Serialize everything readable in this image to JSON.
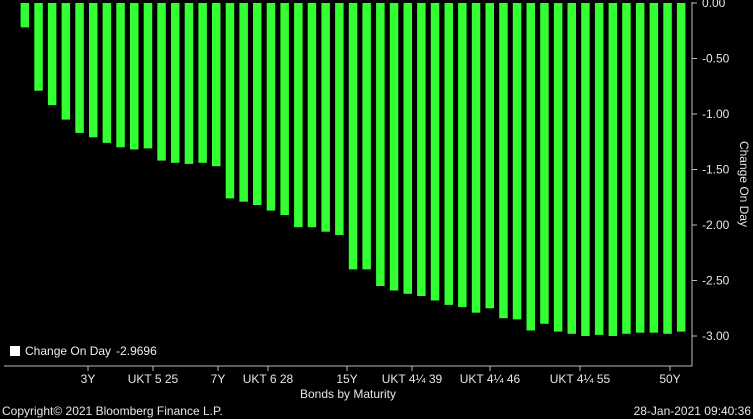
{
  "chart_data": {
    "type": "bar",
    "ylabel": "Change On Day",
    "xlabel": "Bonds by Maturity",
    "ylim": [
      -3.1,
      0.0
    ],
    "y_ticks": [
      "0.00",
      "-0.50",
      "-1.00",
      "-1.50",
      "-2.00",
      "-2.50",
      "-3.00"
    ],
    "x_tick_labels": [
      "3Y",
      "UKT 5 25",
      "7Y",
      "UKT 6 28",
      "15Y",
      "UKT 4¼ 39",
      "UKT 4¼ 46",
      "UKT 4¼ 55",
      "50Y"
    ],
    "series": [
      {
        "name": "Change On Day",
        "color": "#33ff33",
        "values": [
          -0.22,
          -0.79,
          -0.92,
          -1.05,
          -1.17,
          -1.21,
          -1.26,
          -1.3,
          -1.32,
          -1.31,
          -1.42,
          -1.44,
          -1.45,
          -1.44,
          -1.47,
          -1.76,
          -1.79,
          -1.82,
          -1.87,
          -1.91,
          -2.02,
          -2.02,
          -2.06,
          -2.09,
          -2.4,
          -2.4,
          -2.55,
          -2.59,
          -2.62,
          -2.64,
          -2.68,
          -2.72,
          -2.74,
          -2.79,
          -2.75,
          -2.84,
          -2.85,
          -2.95,
          -2.89,
          -2.96,
          -2.98,
          -3.0,
          -2.99,
          -3.0,
          -2.98,
          -2.97,
          -2.97,
          -2.98,
          -2.96
        ]
      }
    ],
    "legend": {
      "label": "Change On Day",
      "value": "-2.9696",
      "position": "bottom-left"
    },
    "grid": false
  },
  "footer": {
    "copyright": "Copyright© 2021 Bloomberg Finance L.P.",
    "timestamp": "28-Jan-2021 09:40:36"
  }
}
